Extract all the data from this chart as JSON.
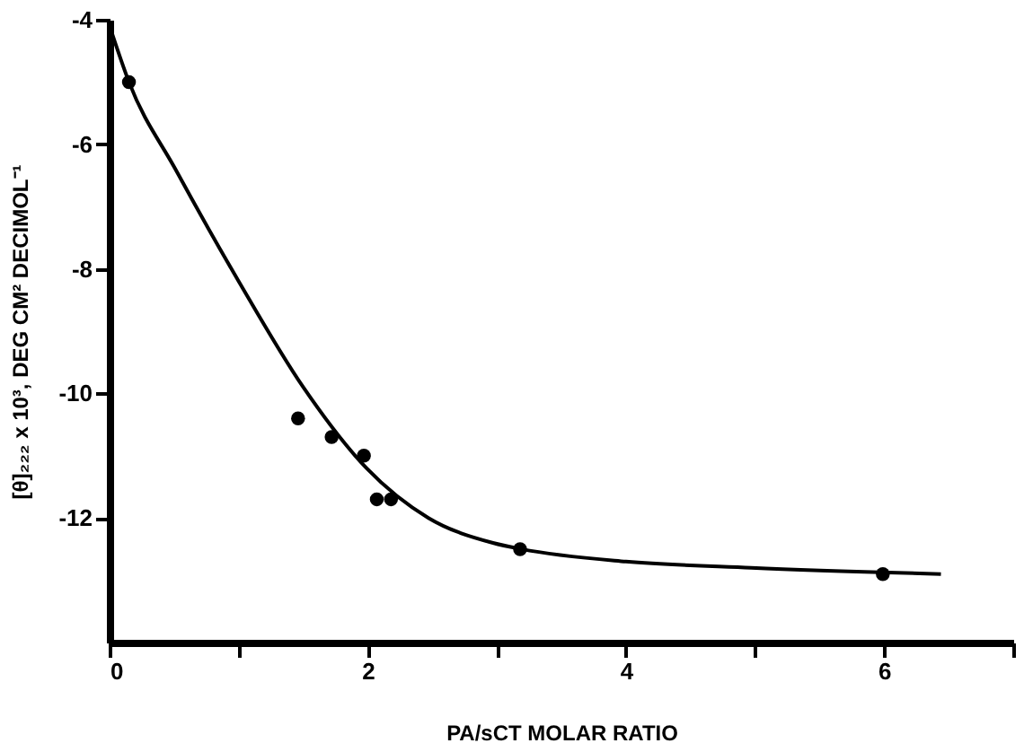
{
  "chart_data": {
    "type": "scatter",
    "xlabel": "PA/sCT MOLAR RATIO",
    "ylabel": "[θ]₂₂₂ x 10³, DEG CM² DECIMOL⁻¹",
    "xlim": [
      0,
      7
    ],
    "ylim": [
      -14,
      -4
    ],
    "xticks": [
      0,
      {
        "value": 1,
        "label": null
      },
      2,
      {
        "value": 3,
        "label": null
      },
      4,
      {
        "value": 5,
        "label": null
      },
      6,
      {
        "value": 7,
        "label": null
      }
    ],
    "yticks": [
      -4,
      -6,
      -8,
      -10,
      -12
    ],
    "grid": false,
    "series": [
      {
        "color": "#000000",
        "marker": "circle",
        "x": [
          0.15,
          1.46,
          1.72,
          1.97,
          2.07,
          2.18,
          3.18,
          5.99
        ],
        "values": [
          -5.0,
          -10.4,
          -10.7,
          -11.0,
          -11.7,
          -11.7,
          -12.5,
          -12.9
        ]
      },
      {
        "type": "line",
        "color": "#000000",
        "marker": "none",
        "line_style": "solid",
        "x": [
          0,
          0.15,
          0.51,
          1.0,
          1.5,
          1.99,
          2.47,
          2.97,
          3.19,
          4.0,
          4.97,
          6.44
        ],
        "values": [
          -4.1,
          -5.0,
          -6.4,
          -8.2,
          -9.9,
          -11.2,
          -12.0,
          -12.4,
          -12.5,
          -12.7,
          -12.8,
          -12.9
        ]
      }
    ]
  }
}
